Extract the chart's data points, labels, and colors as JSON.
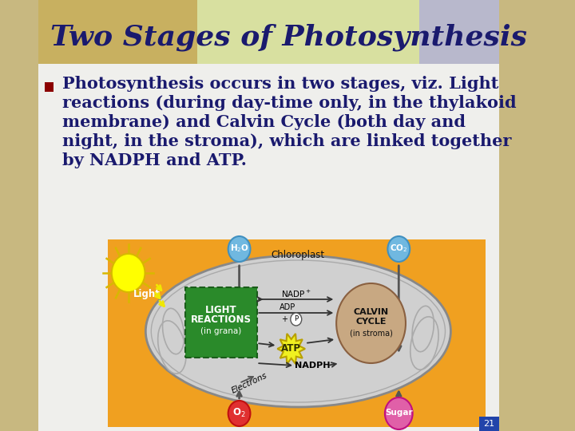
{
  "title": "Two Stages of Photosynthesis",
  "title_color": "#1a1a6e",
  "title_fontsize": 26,
  "bullet_lines": [
    "Photosynthesis occurs in two stages, viz. Light",
    "reactions (during day-time only, in the thylakoid",
    "membrane) and Calvin Cycle (both day and",
    "night, in the stroma), which are linked together",
    "by NADPH and ATP."
  ],
  "bullet_color": "#1a1a6e",
  "bullet_fontsize": 15,
  "bullet_marker_color": "#8b0000",
  "bg_sandy_color": "#c8b880",
  "bg_main_color": "#efefec",
  "header_left_color": "#c8b060",
  "header_center_color": "#d8e0a0",
  "header_right_color": "#b8b8cc",
  "diagram_bg_color": "#f0a020",
  "chloroplast_fill": "#d0d0d0",
  "chloroplast_edge": "#888888",
  "light_reactions_fill": "#2a8a2a",
  "calvin_cycle_fill": "#c8a882",
  "h2o_color": "#70b8e0",
  "o2_color": "#e03030",
  "sugar_color": "#e060a8",
  "atp_color": "#f0f020",
  "sun_color": "#ffff00",
  "arrow_color": "#555555",
  "text_dark": "#111111",
  "page_number": "21"
}
